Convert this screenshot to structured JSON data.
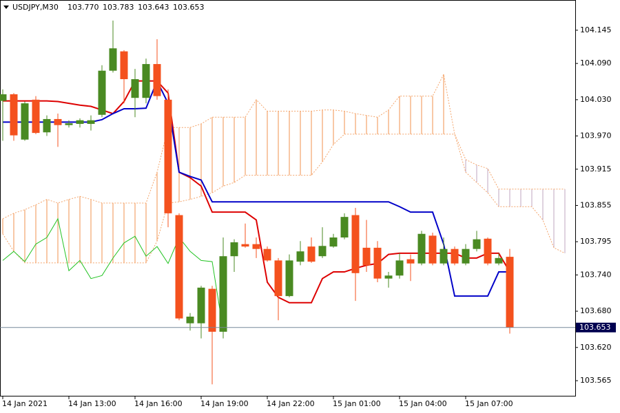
{
  "chart_data": {
    "type": "candlestick",
    "symbol": "USDJPY,M30",
    "ohlc_header": [
      "103.770",
      "103.783",
      "103.643",
      "103.653"
    ],
    "categories": [
      "14 Jan 2021",
      null,
      null,
      null,
      null,
      null,
      "14 Jan 13:00",
      null,
      null,
      null,
      null,
      null,
      "14 Jan 16:00",
      null,
      null,
      null,
      null,
      null,
      "14 Jan 19:00",
      null,
      null,
      null,
      null,
      null,
      "14 Jan 22:00",
      null,
      null,
      null,
      null,
      null,
      "15 Jan 01:00",
      null,
      null,
      null,
      null,
      null,
      "15 Jan 04:00",
      null,
      null,
      null,
      null,
      null,
      "15 Jan 07:00",
      null,
      null,
      null,
      null,
      null,
      null,
      null,
      null,
      null
    ],
    "open": [
      104.028,
      104.039,
      103.964,
      104.03,
      103.976,
      103.998,
      103.988,
      103.99,
      103.99,
      104.005,
      104.078,
      104.11,
      104.033,
      104.033,
      104.089,
      104.03,
      103.839,
      103.66,
      103.66,
      103.717,
      103.646,
      103.771,
      103.791,
      103.791,
      103.783,
      103.764,
      103.705,
      103.762,
      103.787,
      103.771,
      103.787,
      103.802,
      103.839,
      103.785,
      103.785,
      103.734,
      103.739,
      103.766,
      103.759,
      103.805,
      103.759,
      103.783,
      103.759,
      103.783,
      103.8,
      103.759,
      103.77,
      null,
      null,
      null,
      null,
      null
    ],
    "high": [
      104.047,
      104.041,
      104.027,
      104.036,
      104.004,
      104.007,
      103.996,
      103.999,
      104.004,
      104.087,
      104.161,
      104.112,
      104.081,
      104.098,
      104.13,
      104.047,
      103.842,
      103.677,
      103.722,
      103.722,
      103.802,
      103.799,
      103.825,
      103.802,
      103.787,
      103.768,
      103.774,
      103.796,
      103.802,
      103.819,
      103.808,
      103.842,
      103.851,
      103.831,
      103.796,
      103.745,
      103.776,
      103.774,
      103.813,
      103.81,
      103.802,
      103.787,
      103.791,
      103.813,
      103.802,
      103.776,
      103.783,
      null,
      null,
      null,
      null,
      null
    ],
    "low": [
      103.962,
      103.962,
      103.962,
      103.973,
      103.97,
      103.952,
      103.984,
      103.984,
      103.979,
      104.001,
      104.075,
      104.024,
      104.001,
      104.024,
      104.03,
      103.819,
      103.665,
      103.648,
      103.635,
      103.559,
      103.635,
      103.745,
      103.785,
      103.768,
      103.762,
      103.665,
      103.703,
      103.756,
      103.76,
      103.768,
      103.785,
      103.799,
      103.697,
      103.745,
      103.728,
      103.719,
      103.734,
      103.73,
      103.756,
      103.756,
      103.756,
      103.756,
      103.756,
      103.779,
      103.756,
      103.756,
      103.643,
      null,
      null,
      null,
      null,
      null
    ],
    "close": [
      104.039,
      103.971,
      104.024,
      103.975,
      103.998,
      103.988,
      103.991,
      103.996,
      103.996,
      104.078,
      104.115,
      104.064,
      104.064,
      104.089,
      104.036,
      103.842,
      103.668,
      103.671,
      103.719,
      103.646,
      103.771,
      103.794,
      103.787,
      103.783,
      103.764,
      103.705,
      103.764,
      103.779,
      103.762,
      103.788,
      103.802,
      103.836,
      103.743,
      103.756,
      103.734,
      103.739,
      103.764,
      103.759,
      103.808,
      103.759,
      103.783,
      103.759,
      103.783,
      103.799,
      103.759,
      103.768,
      103.653,
      null,
      null,
      null,
      null,
      null
    ],
    "up_color": "#4a8a22",
    "down_color": "#f4511e",
    "overlays": [
      {
        "color": "#dd0000",
        "values": [
          104.028,
          104.028,
          104.028,
          104.028,
          104.028,
          104.027,
          104.024,
          104.021,
          104.019,
          104.013,
          104.007,
          104.027,
          104.061,
          104.061,
          104.061,
          104.041,
          103.91,
          103.901,
          103.887,
          103.844,
          103.844,
          103.844,
          103.844,
          103.831,
          103.728,
          103.703,
          103.694,
          103.694,
          103.694,
          103.734,
          103.745,
          103.745,
          103.751,
          103.756,
          103.759,
          103.774,
          103.776,
          103.776,
          103.776,
          103.776,
          103.776,
          103.776,
          103.768,
          103.768,
          103.776,
          103.776,
          103.745,
          null,
          null,
          null,
          null,
          null
        ]
      },
      {
        "color": "#0000c8",
        "values": [
          103.993,
          103.993,
          103.993,
          103.993,
          103.993,
          103.993,
          103.993,
          103.993,
          103.993,
          103.997,
          104.007,
          104.015,
          104.015,
          104.016,
          104.061,
          104.024,
          103.91,
          103.903,
          103.897,
          103.861,
          103.861,
          103.861,
          103.861,
          103.861,
          103.861,
          103.861,
          103.861,
          103.861,
          103.861,
          103.861,
          103.861,
          103.861,
          103.861,
          103.861,
          103.861,
          103.861,
          103.853,
          103.844,
          103.844,
          103.844,
          103.791,
          103.705,
          103.705,
          103.705,
          103.705,
          103.745,
          103.745,
          null,
          null,
          null,
          null,
          null
        ]
      },
      {
        "color": "#22c322",
        "values": [
          103.764,
          103.779,
          103.762,
          103.791,
          103.802,
          103.833,
          103.747,
          103.764,
          103.734,
          103.739,
          103.768,
          103.793,
          103.804,
          103.771,
          103.787,
          103.759,
          103.802,
          103.779,
          103.764,
          103.762,
          103.648,
          null,
          null,
          null,
          null,
          null,
          null,
          null,
          null,
          null,
          null,
          null,
          null,
          null,
          null,
          null,
          null,
          null,
          null,
          null,
          null,
          null,
          null,
          null,
          null,
          null,
          null,
          null,
          null,
          null,
          null,
          null
        ]
      }
    ],
    "cloud": {
      "up_color": "#f4a46a",
      "down_color": "#c9b3c9",
      "span_a": [
        103.833,
        103.842,
        103.848,
        103.856,
        103.865,
        103.859,
        103.865,
        103.87,
        103.865,
        103.859,
        103.859,
        103.859,
        103.859,
        103.859,
        103.91,
        103.984,
        103.984,
        103.984,
        103.99,
        104.001,
        104.001,
        104.001,
        104.001,
        104.03,
        104.011,
        104.011,
        104.011,
        104.011,
        104.011,
        104.013,
        104.013,
        104.011,
        104.007,
        104.004,
        104.001,
        104.013,
        104.036,
        104.036,
        104.036,
        104.036,
        104.072,
        103.973,
        103.91,
        103.893,
        103.876,
        103.853,
        103.853,
        103.853,
        103.853,
        103.831,
        103.785,
        103.776
      ],
      "span_b": [
        103.808,
        103.779,
        103.76,
        103.76,
        103.76,
        103.76,
        103.76,
        103.76,
        103.76,
        103.76,
        103.76,
        103.76,
        103.76,
        103.76,
        103.796,
        103.859,
        103.861,
        103.865,
        103.87,
        103.876,
        103.887,
        103.893,
        103.905,
        103.905,
        103.905,
        103.905,
        103.905,
        103.905,
        103.905,
        103.927,
        103.956,
        103.973,
        103.973,
        103.973,
        103.973,
        103.973,
        103.973,
        103.973,
        103.973,
        103.973,
        103.973,
        103.973,
        103.931,
        103.922,
        103.916,
        103.882,
        103.882,
        103.882,
        103.882,
        103.882,
        103.882,
        103.882
      ]
    },
    "last_price": 103.653,
    "ylim": [
      103.54,
      104.195
    ],
    "yticks": [
      104.145,
      {
        "value": 104.09,
        "label": "104.090"
      },
      {
        "value": 104.03,
        "label": "104.030"
      },
      {
        "value": 103.97,
        "label": "103.970"
      },
      103.915,
      103.855,
      103.795,
      {
        "value": 103.74,
        "label": "103.740"
      },
      {
        "value": 103.68,
        "label": "103.680"
      },
      {
        "value": 103.62,
        "label": "103.620"
      },
      103.565
    ]
  }
}
